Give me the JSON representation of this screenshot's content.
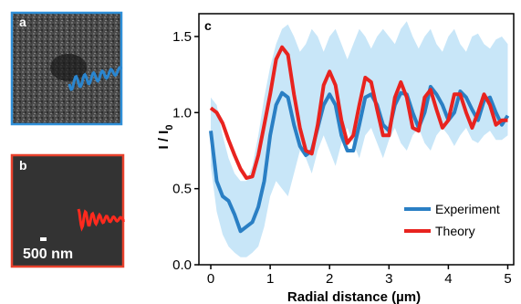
{
  "panels": {
    "a": {
      "letter": "a",
      "border_color": "#2f8fd8",
      "trace_color": "#2a86d0"
    },
    "b": {
      "letter": "b",
      "border_color": "#e8412c",
      "trace_color": "#ff2a1e",
      "scalebar_label": "500 nm"
    },
    "c": {
      "letter": "c"
    }
  },
  "chart_data": {
    "type": "line",
    "xlabel": "Radial distance (µm)",
    "ylabel": "I / I",
    "ylabel_subscript": "0",
    "xlim": [
      -0.2,
      5.1
    ],
    "ylim": [
      0.0,
      1.65
    ],
    "xticks": [
      0,
      1,
      2,
      3,
      4,
      5
    ],
    "yticks": [
      0.0,
      0.5,
      1.0,
      1.5
    ],
    "ytick_labels": [
      "0.0",
      "0.5",
      "1.0",
      "1.5"
    ],
    "grid": false,
    "legend_position": "lower-right",
    "band": {
      "color": "#c8e6f8",
      "x": [
        0.0,
        0.1,
        0.2,
        0.3,
        0.4,
        0.5,
        0.6,
        0.7,
        0.8,
        0.9,
        1.0,
        1.1,
        1.2,
        1.3,
        1.4,
        1.5,
        1.6,
        1.7,
        1.8,
        1.9,
        2.0,
        2.1,
        2.2,
        2.3,
        2.4,
        2.5,
        2.6,
        2.7,
        2.8,
        2.9,
        3.0,
        3.1,
        3.2,
        3.3,
        3.4,
        3.5,
        3.6,
        3.7,
        3.8,
        3.9,
        4.0,
        4.1,
        4.2,
        4.3,
        4.4,
        4.5,
        4.6,
        4.7,
        4.8,
        4.9,
        5.0
      ],
      "upper": [
        1.1,
        1.05,
        0.85,
        0.7,
        0.6,
        0.55,
        0.55,
        0.65,
        0.85,
        1.1,
        1.3,
        1.45,
        1.55,
        1.58,
        1.5,
        1.4,
        1.45,
        1.55,
        1.5,
        1.4,
        1.5,
        1.55,
        1.45,
        1.35,
        1.45,
        1.55,
        1.5,
        1.42,
        1.5,
        1.55,
        1.5,
        1.45,
        1.55,
        1.6,
        1.5,
        1.42,
        1.5,
        1.55,
        1.45,
        1.4,
        1.5,
        1.55,
        1.45,
        1.4,
        1.5,
        1.52,
        1.45,
        1.42,
        1.48,
        1.5,
        1.45
      ],
      "lower": [
        0.65,
        0.35,
        0.2,
        0.12,
        0.08,
        0.05,
        0.05,
        0.08,
        0.12,
        0.25,
        0.45,
        0.55,
        0.5,
        0.45,
        0.6,
        0.75,
        0.7,
        0.6,
        0.75,
        0.85,
        0.75,
        0.65,
        0.8,
        0.9,
        0.8,
        0.7,
        0.85,
        0.9,
        0.8,
        0.7,
        0.82,
        0.9,
        0.8,
        0.75,
        0.85,
        0.9,
        0.8,
        0.75,
        0.85,
        0.9,
        0.85,
        0.78,
        0.85,
        0.9,
        0.82,
        0.8,
        0.85,
        0.88,
        0.82,
        0.82,
        0.85
      ]
    },
    "series": [
      {
        "name": "Experiment",
        "color": "#2a7fc4",
        "x": [
          0.0,
          0.1,
          0.2,
          0.3,
          0.4,
          0.5,
          0.6,
          0.7,
          0.8,
          0.9,
          1.0,
          1.1,
          1.2,
          1.3,
          1.4,
          1.5,
          1.6,
          1.7,
          1.8,
          1.9,
          2.0,
          2.1,
          2.2,
          2.3,
          2.4,
          2.5,
          2.6,
          2.7,
          2.8,
          2.9,
          3.0,
          3.1,
          3.2,
          3.3,
          3.4,
          3.5,
          3.6,
          3.7,
          3.8,
          3.9,
          4.0,
          4.1,
          4.2,
          4.3,
          4.4,
          4.5,
          4.6,
          4.7,
          4.8,
          4.9,
          5.0
        ],
        "y": [
          0.88,
          0.55,
          0.45,
          0.42,
          0.33,
          0.22,
          0.25,
          0.28,
          0.38,
          0.55,
          0.85,
          1.05,
          1.13,
          1.1,
          0.92,
          0.78,
          0.72,
          0.75,
          0.9,
          1.05,
          1.12,
          1.05,
          0.85,
          0.75,
          0.75,
          0.92,
          1.1,
          1.12,
          1.05,
          0.92,
          0.88,
          1.05,
          1.13,
          1.12,
          1.0,
          0.9,
          1.0,
          1.17,
          1.12,
          1.05,
          0.95,
          1.0,
          1.14,
          1.1,
          1.02,
          0.95,
          1.08,
          1.1,
          1.0,
          0.92,
          0.98
        ]
      },
      {
        "name": "Theory",
        "color": "#e8231f",
        "x": [
          0.0,
          0.1,
          0.2,
          0.3,
          0.4,
          0.5,
          0.6,
          0.7,
          0.8,
          0.9,
          1.0,
          1.1,
          1.2,
          1.3,
          1.4,
          1.5,
          1.6,
          1.7,
          1.8,
          1.9,
          2.0,
          2.1,
          2.2,
          2.3,
          2.4,
          2.5,
          2.6,
          2.7,
          2.8,
          2.9,
          3.0,
          3.1,
          3.2,
          3.3,
          3.4,
          3.5,
          3.6,
          3.7,
          3.8,
          3.9,
          4.0,
          4.1,
          4.2,
          4.3,
          4.4,
          4.5,
          4.6,
          4.7,
          4.8,
          4.9,
          5.0
        ],
        "y": [
          1.03,
          1.0,
          0.93,
          0.82,
          0.72,
          0.63,
          0.57,
          0.58,
          0.72,
          0.92,
          1.12,
          1.35,
          1.43,
          1.38,
          1.12,
          0.9,
          0.75,
          0.73,
          0.92,
          1.18,
          1.27,
          1.18,
          0.95,
          0.8,
          0.85,
          1.05,
          1.23,
          1.2,
          1.02,
          0.85,
          0.85,
          1.1,
          1.2,
          1.1,
          0.9,
          0.88,
          1.1,
          1.15,
          1.02,
          0.9,
          0.95,
          1.12,
          1.12,
          1.0,
          0.9,
          1.0,
          1.12,
          1.05,
          0.92,
          0.95,
          0.95
        ]
      }
    ]
  }
}
